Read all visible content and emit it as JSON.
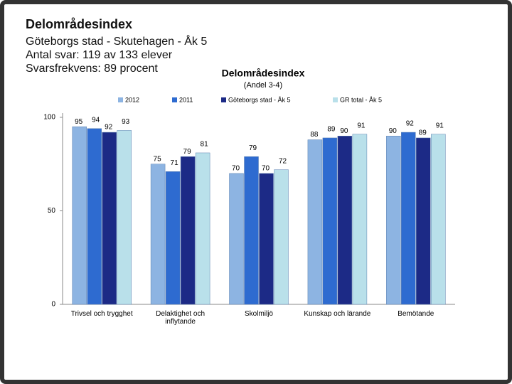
{
  "header": {
    "title": "Delområdesindex",
    "lines": [
      "Göteborgs stad - Skutehagen - Åk 5",
      "Antal svar: 119 av 133 elever",
      "Svarsfrekvens: 89 procent"
    ]
  },
  "chart_data": {
    "type": "bar",
    "title": "Delområdesindex",
    "subtitle": "(Andel 3-4)",
    "categories": [
      "Trivsel och trygghet",
      "Delaktighet och inflytande",
      "Skolmiljö",
      "Kunskap och lärande",
      "Bemötande"
    ],
    "series": [
      {
        "name": "2012",
        "color": "#8db4e2",
        "values": [
          95,
          75,
          70,
          88,
          90
        ]
      },
      {
        "name": "2011",
        "color": "#2e6bd0",
        "values": [
          94,
          71,
          79,
          89,
          92
        ]
      },
      {
        "name": "Göteborgs stad - Åk 5",
        "color": "#1c2a86",
        "values": [
          92,
          79,
          70,
          90,
          89
        ]
      },
      {
        "name": "GR total - Åk 5",
        "color": "#b9e0ea",
        "values": [
          93,
          81,
          72,
          91,
          91
        ]
      }
    ],
    "ylim": [
      0,
      100
    ],
    "yticks": [
      0,
      50,
      100
    ],
    "grid": false,
    "legend": "top"
  }
}
